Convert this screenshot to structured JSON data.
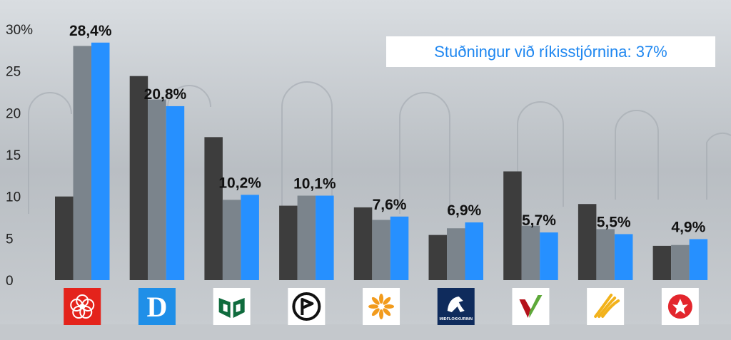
{
  "chart_data": {
    "type": "bar",
    "y_tick_labels": [
      "0",
      "5",
      "10",
      "15",
      "20",
      "25",
      "30%"
    ],
    "ylim": [
      0,
      30
    ],
    "grid": false,
    "series": [
      {
        "color": "#3d3d3d",
        "values": [
          10.0,
          24.4,
          17.1,
          8.9,
          8.7,
          5.4,
          13.0,
          9.1,
          4.1
        ]
      },
      {
        "color": "#7b848c",
        "values": [
          28.0,
          21.6,
          9.6,
          10.1,
          7.2,
          6.2,
          6.5,
          6.1,
          4.2
        ]
      },
      {
        "color": "#2690ff",
        "values": [
          28.4,
          20.8,
          10.2,
          10.1,
          7.6,
          6.9,
          5.7,
          5.5,
          4.9
        ],
        "labels": [
          "28,4%",
          "20,8%",
          "10,2%",
          "10,1%",
          "7,6%",
          "6,9%",
          "5,7%",
          "5,5%",
          "4,9%"
        ]
      }
    ],
    "party_icons": [
      {
        "icon": "rose-icon",
        "bg": "#e4231b",
        "fg": "#ffffff"
      },
      {
        "icon": "letter-d-icon",
        "bg": "#1f8fe8",
        "fg": "#ffffff",
        "text": "D"
      },
      {
        "icon": "book-icon",
        "bg": "#ffffff",
        "fg": "#0f6b3d"
      },
      {
        "icon": "pirate-flag-icon",
        "bg": "#ffffff",
        "fg": "#111111"
      },
      {
        "icon": "sun-burst-icon",
        "bg": "#ffffff",
        "fg": "#f29b1d"
      },
      {
        "icon": "horse-icon",
        "bg": "#0f2b5c",
        "fg": "#ffffff",
        "text": "MIÐFLOKKURINN"
      },
      {
        "icon": "v-check-icon",
        "bg": "#ffffff",
        "fg": "#b5121b"
      },
      {
        "icon": "flame-hand-icon",
        "bg": "#ffffff",
        "fg": "#f2b21b"
      },
      {
        "icon": "star-person-icon",
        "bg": "#ffffff",
        "fg": "#e3262d"
      }
    ]
  },
  "banner": {
    "text": "Stuðningur við ríkisstjórnina: 37%"
  }
}
